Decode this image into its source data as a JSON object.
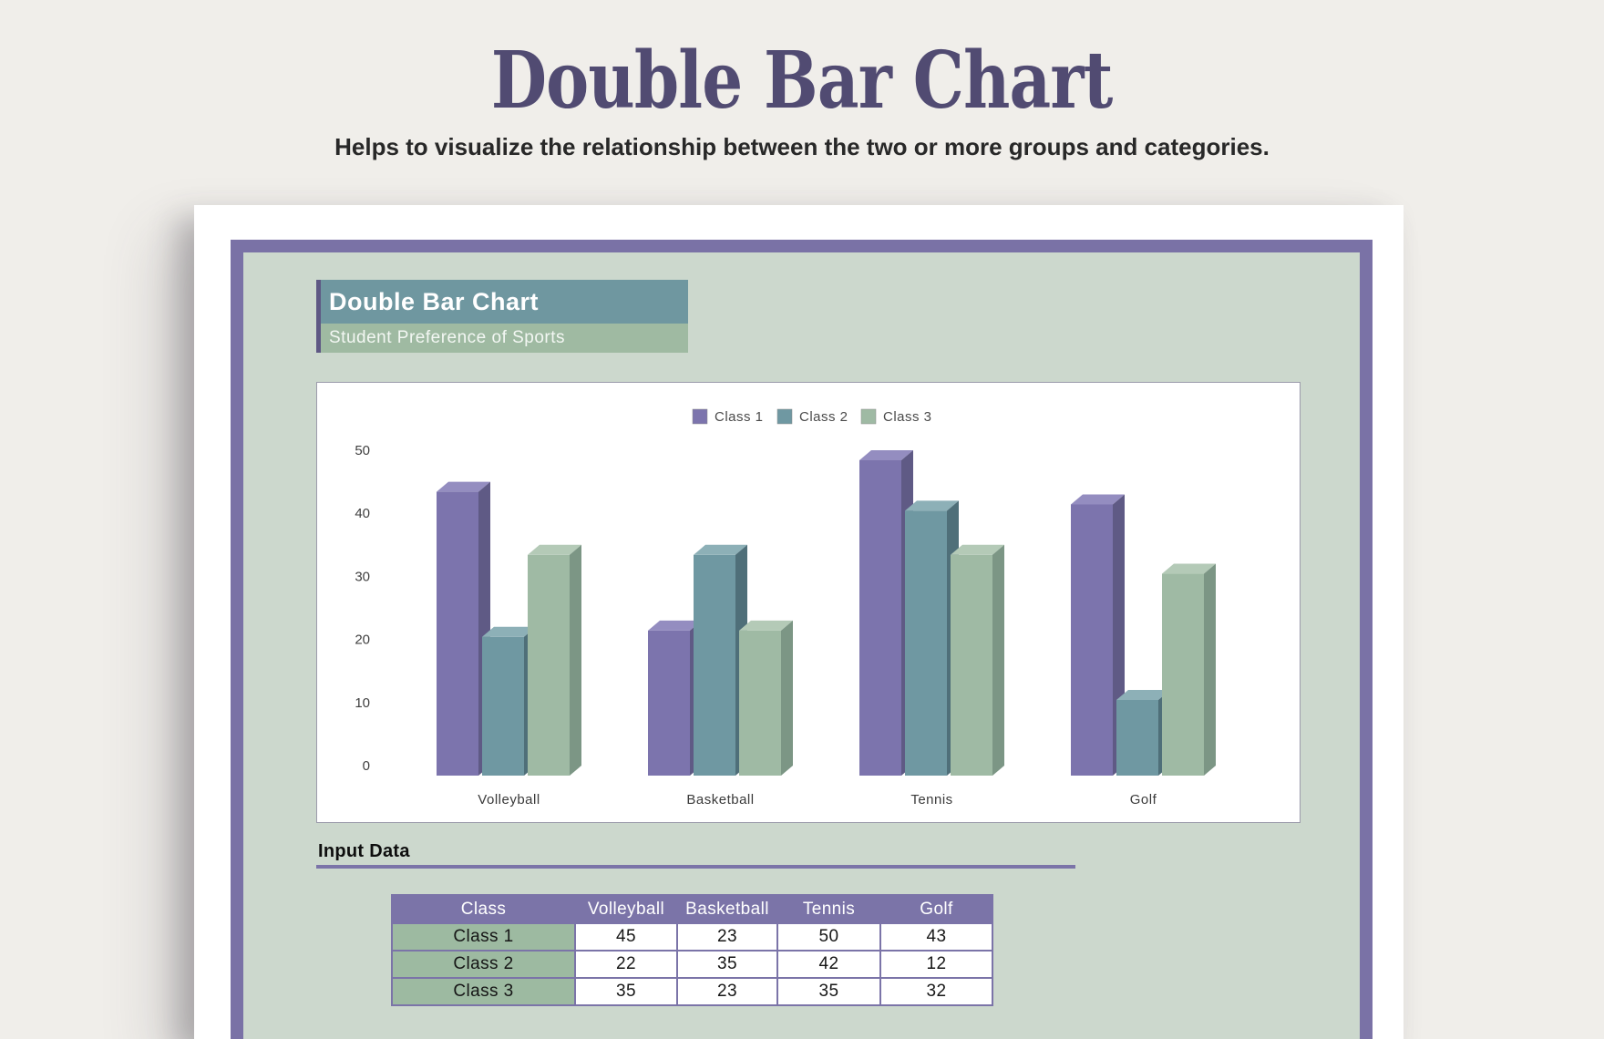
{
  "header": {
    "title": "Double Bar Chart",
    "subtitle": "Helps to visualize the relationship between the two or more groups and categories."
  },
  "banner": {
    "title": "Double Bar Chart",
    "subtitle": "Student Preference of Sports"
  },
  "chart_data": {
    "type": "bar",
    "style": "3d-clustered",
    "title": "Student Preference of Sports",
    "categories": [
      "Volleyball",
      "Basketball",
      "Tennis",
      "Golf"
    ],
    "series": [
      {
        "name": "Class 1",
        "values": [
          45,
          23,
          50,
          43
        ],
        "color": {
          "front": "#7c74ad",
          "top": "#948dc0",
          "side": "#5f5a85"
        }
      },
      {
        "name": "Class 2",
        "values": [
          22,
          35,
          42,
          12
        ],
        "color": {
          "front": "#6f98a2",
          "top": "#8db0b7",
          "side": "#4f6f79"
        }
      },
      {
        "name": "Class 3",
        "values": [
          35,
          23,
          35,
          32
        ],
        "color": {
          "front": "#9fbaa4",
          "top": "#b4cab7",
          "side": "#7c9685"
        }
      }
    ],
    "yticks": [
      0,
      10,
      20,
      30,
      40,
      50
    ],
    "ylim": [
      0,
      50
    ],
    "grid": false,
    "legend_position": "top-center",
    "axis_text_color": "#3f3f3f"
  },
  "input_section": {
    "heading": "Input Data"
  },
  "input_table": {
    "columns": [
      "Class",
      "Volleyball",
      "Basketball",
      "Tennis",
      "Golf"
    ],
    "rows": [
      {
        "label": "Class 1",
        "values": [
          45,
          23,
          50,
          43
        ]
      },
      {
        "label": "Class 2",
        "values": [
          22,
          35,
          42,
          12
        ]
      },
      {
        "label": "Class 3",
        "values": [
          35,
          23,
          35,
          32
        ]
      }
    ]
  },
  "colors": {
    "page_background": "#f0eeea",
    "page_title": "#514b72",
    "frame_border": "#7a72a6",
    "panel_background": "#ccd8cd",
    "banner_teal": "#6f97a0",
    "banner_green": "#9fbaa2",
    "banner_stripe": "#5e5884",
    "table_header": "#7b74a8",
    "table_row_label": "#9dbaa1",
    "accent_underline": "#7b74a8"
  }
}
